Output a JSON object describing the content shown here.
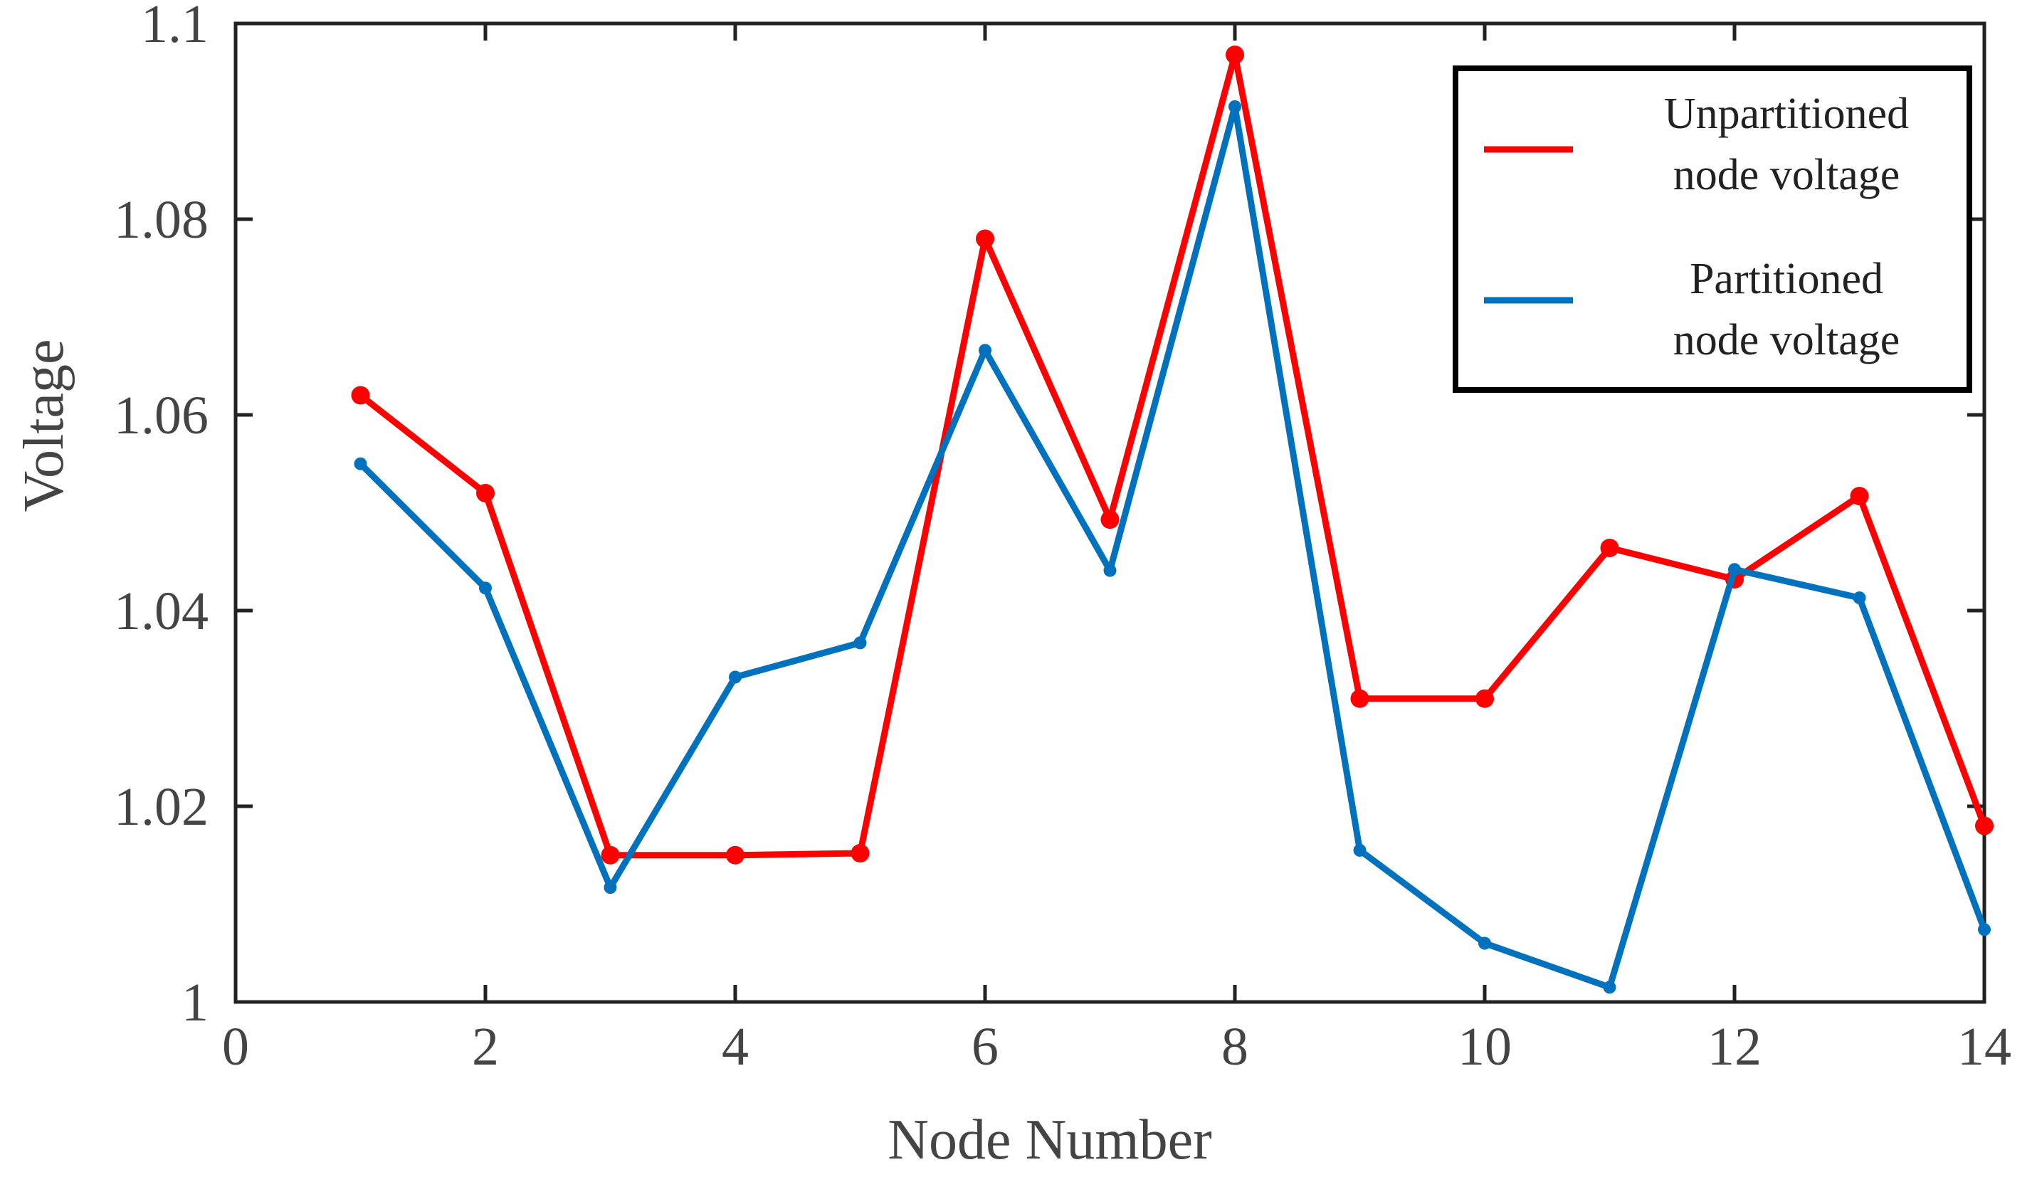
{
  "colors": {
    "unpartitioned": "#ff0000",
    "partitioned": "#0072bd",
    "axis": "#222222",
    "text": "#444444"
  },
  "chart_data": {
    "type": "line",
    "xlabel": "Node Number",
    "ylabel": "Voltage",
    "xlim": [
      0,
      14
    ],
    "ylim": [
      1,
      1.1
    ],
    "xticks": [
      "0",
      "2",
      "4",
      "6",
      "8",
      "10",
      "12",
      "14"
    ],
    "yticks": [
      "1",
      "1.02",
      "1.04",
      "1.06",
      "1.08",
      "1.1"
    ],
    "grid": false,
    "legend_position": "top-right",
    "x": [
      1,
      2,
      3,
      4,
      5,
      6,
      7,
      8,
      9,
      10,
      11,
      12,
      13,
      14
    ],
    "series": [
      {
        "name_lines": [
          "Unpartitioned",
          "node voltage"
        ],
        "color": "#ff0000",
        "marker": "large-dot",
        "values": [
          1.062,
          1.052,
          1.015,
          1.015,
          1.0152,
          1.078,
          1.0493,
          1.0968,
          1.031,
          1.031,
          1.0464,
          1.0432,
          1.0517,
          1.018
        ]
      },
      {
        "name_lines": [
          "Partitioned",
          "node voltage"
        ],
        "color": "#0072bd",
        "marker": "small-dot",
        "values": [
          1.055,
          1.0423,
          1.0117,
          1.0332,
          1.0367,
          1.0666,
          1.0441,
          1.0915,
          1.0155,
          1.006,
          1.0015,
          1.0442,
          1.0413,
          1.0074
        ]
      }
    ]
  }
}
